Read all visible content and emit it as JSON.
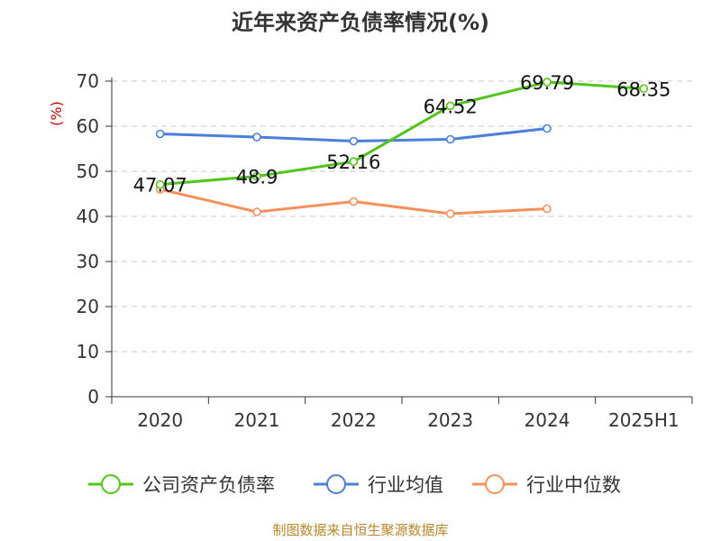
{
  "chart_data": {
    "type": "line",
    "title": "近年来资产负债率情况(%)",
    "ylabel": "(%)",
    "xlabel": "",
    "categories": [
      "2020",
      "2021",
      "2022",
      "2023",
      "2024",
      "2025H1"
    ],
    "ylim": [
      0,
      70
    ],
    "yticks": [
      "0",
      "10",
      "20",
      "30",
      "40",
      "50",
      "60",
      "70"
    ],
    "grid": true,
    "legend_position": "bottom",
    "series": [
      {
        "name": "公司资产负债率",
        "color": "#52c41a",
        "values": [
          47.07,
          48.9,
          52.16,
          64.52,
          69.79,
          68.35
        ],
        "labels": [
          "47.07",
          "48.9",
          "52.16",
          "64.52",
          "69.79",
          "68.35"
        ]
      },
      {
        "name": "行业均值",
        "color": "#4a7fdc",
        "values": [
          58.3,
          57.6,
          56.7,
          57.1,
          59.5,
          null
        ]
      },
      {
        "name": "行业中位数",
        "color": "#f4915a",
        "values": [
          46.0,
          41.0,
          43.3,
          40.6,
          41.7,
          null
        ]
      }
    ]
  },
  "source": "制图数据来自恒生聚源数据库"
}
